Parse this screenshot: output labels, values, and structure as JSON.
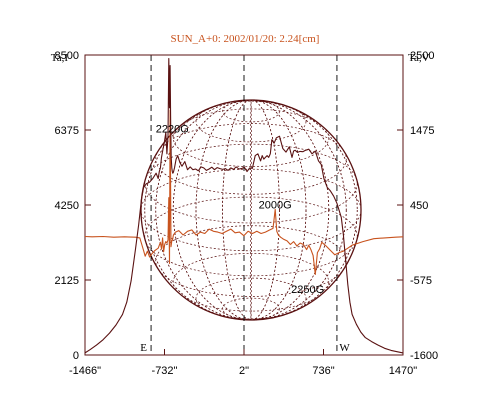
{
  "chart_data": {
    "type": "line",
    "title": "SUN_A+0: 2002/01/20: 2.24[cm]",
    "left_axis_label": "Ta,I",
    "right_axis_label": "Ta,V",
    "x_ticks": [
      {
        "value": -1466,
        "label": "-1466\""
      },
      {
        "value": -732,
        "label": "-732\""
      },
      {
        "value": 2,
        "label": "2\""
      },
      {
        "value": 736,
        "label": "736\""
      },
      {
        "value": 1470,
        "label": "1470\""
      }
    ],
    "y_left_ticks": [
      0,
      2125,
      4250,
      6375,
      8500
    ],
    "y_right_ticks": [
      -1600,
      -575,
      450,
      1475,
      2500
    ],
    "xlim": [
      -1466,
      1470
    ],
    "ylim_left": [
      0,
      8500
    ],
    "ylim_right": [
      -1600,
      2500
    ],
    "limb_labels": [
      {
        "label": "E",
        "x": -925
      },
      {
        "label": "W",
        "x": 930
      }
    ],
    "dashed_x": [
      -856,
      2,
      860
    ],
    "annotations": [
      {
        "label": "2220G",
        "x": -660,
        "y_left": 6300
      },
      {
        "label": "2000G",
        "x": 290,
        "y_left": 4150
      },
      {
        "label": "2250G",
        "x": 590,
        "y_left": 1750
      }
    ],
    "series": [
      {
        "name": "I",
        "axis": "left",
        "color": "#5a1212",
        "x": [
          -1466,
          -1420,
          -1360,
          -1300,
          -1240,
          -1180,
          -1120,
          -1080,
          -1040,
          -1000,
          -970,
          -945,
          -925,
          -900,
          -870,
          -840,
          -810,
          -790,
          -780,
          -770,
          -760,
          -745,
          -735,
          -720,
          -710,
          -700,
          -692,
          -686,
          -680,
          -675,
          -670,
          -665,
          -660,
          -655,
          -650,
          -640,
          -625,
          -610,
          -590,
          -570,
          -545,
          -520,
          -495,
          -470,
          -445,
          -420,
          -395,
          -370,
          -345,
          -320,
          -295,
          -270,
          -245,
          -220,
          -195,
          -170,
          -145,
          -120,
          -95,
          -70,
          -45,
          -20,
          5,
          30,
          55,
          80,
          105,
          130,
          155,
          170,
          185,
          200,
          215,
          230,
          245,
          260,
          280,
          300,
          330,
          360,
          390,
          420,
          445,
          460,
          475,
          495,
          520,
          545,
          570,
          600,
          630,
          660,
          690,
          715,
          740,
          770,
          800,
          830,
          860,
          880,
          900,
          920,
          940,
          960,
          980,
          1000,
          1040,
          1080,
          1120,
          1180,
          1240,
          1300,
          1360,
          1420,
          1470
        ],
        "y": [
          60,
          150,
          280,
          430,
          620,
          850,
          1150,
          1500,
          2100,
          3000,
          3700,
          4400,
          4750,
          4850,
          4900,
          5000,
          5150,
          5000,
          5200,
          5300,
          5600,
          5850,
          6000,
          6300,
          5700,
          6200,
          8400,
          7000,
          8200,
          6500,
          5600,
          5300,
          5200,
          5150,
          5180,
          5300,
          5550,
          5650,
          5450,
          5350,
          5480,
          5250,
          5330,
          5250,
          5270,
          5220,
          5330,
          5300,
          5230,
          5270,
          5320,
          5250,
          5310,
          5280,
          5260,
          5280,
          5230,
          5300,
          5260,
          5330,
          5270,
          5280,
          5320,
          5200,
          5300,
          5290,
          5650,
          5700,
          5500,
          5650,
          5550,
          5600,
          5650,
          5600,
          5700,
          6100,
          6000,
          6150,
          6200,
          5850,
          5750,
          5900,
          5600,
          5780,
          5800,
          5740,
          5770,
          5760,
          5800,
          5830,
          5700,
          5780,
          5500,
          5400,
          5000,
          4750,
          4650,
          4500,
          4300,
          4100,
          3900,
          3400,
          2700,
          2000,
          1500,
          1150,
          870,
          650,
          500,
          380,
          280,
          190,
          130,
          90,
          60
        ]
      },
      {
        "name": "V",
        "axis": "right",
        "color": "#c8531e",
        "x": [
          -1466,
          -1400,
          -1300,
          -1200,
          -1100,
          -1000,
          -960,
          -930,
          -910,
          -890,
          -870,
          -850,
          -820,
          -790,
          -770,
          -760,
          -750,
          -740,
          -730,
          -720,
          -710,
          -700,
          -692,
          -686,
          -680,
          -672,
          -665,
          -658,
          -650,
          -630,
          -600,
          -560,
          -520,
          -480,
          -440,
          -400,
          -360,
          -320,
          -280,
          -240,
          -200,
          -160,
          -120,
          -80,
          -40,
          0,
          40,
          80,
          120,
          160,
          200,
          240,
          270,
          290,
          305,
          320,
          340,
          370,
          400,
          430,
          460,
          490,
          520,
          550,
          580,
          600,
          620,
          640,
          660,
          680,
          700,
          720,
          760,
          800,
          840,
          880,
          920,
          960,
          1000,
          1100,
          1200,
          1300,
          1400,
          1470
        ],
        "y": [
          20,
          15,
          20,
          10,
          15,
          10,
          0,
          -150,
          -250,
          -180,
          -260,
          -220,
          -170,
          -140,
          -60,
          -150,
          0,
          -190,
          -90,
          -50,
          -70,
          -30,
          550,
          -350,
          1750,
          -120,
          -40,
          -30,
          40,
          80,
          100,
          40,
          90,
          110,
          40,
          80,
          60,
          120,
          90,
          80,
          60,
          90,
          120,
          70,
          80,
          30,
          90,
          60,
          90,
          60,
          80,
          110,
          130,
          390,
          90,
          40,
          10,
          -20,
          -40,
          -90,
          -50,
          -110,
          -70,
          -90,
          -160,
          -100,
          -160,
          -240,
          -500,
          -200,
          -150,
          -60,
          -110,
          -170,
          -230,
          -200,
          -180,
          -140,
          -100,
          -50,
          -10,
          0,
          10,
          15
        ]
      }
    ]
  }
}
